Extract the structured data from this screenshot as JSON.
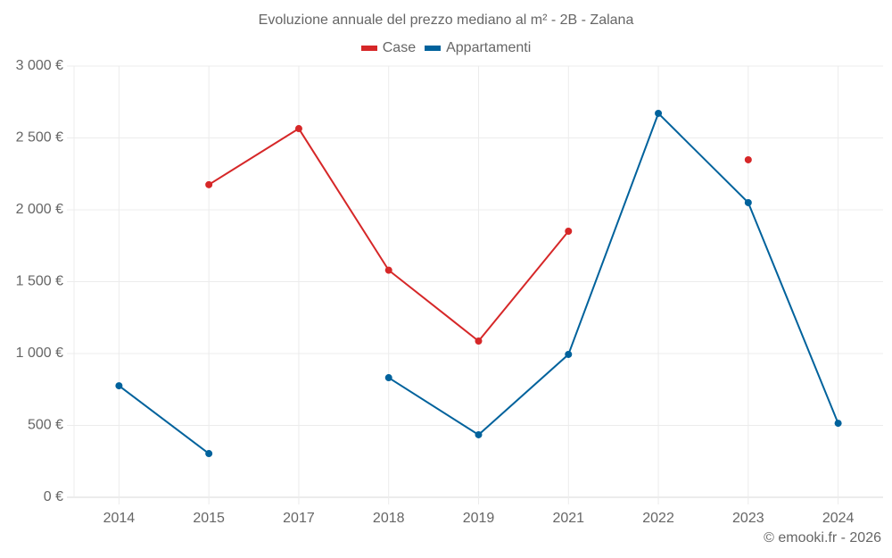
{
  "title": "Evoluzione annuale del prezzo mediano al m² - 2B - Zalana",
  "legend": [
    {
      "label": "Case",
      "color": "#d62728"
    },
    {
      "label": "Appartamenti",
      "color": "#00629c"
    }
  ],
  "credit": "© emooki.fr - 2026",
  "colors": {
    "case": "#d62728",
    "appartamenti": "#00629c",
    "grid": "#ececec",
    "axis": "#d9d9d9",
    "text": "#666666"
  },
  "chart_data": {
    "type": "line",
    "title": "Evoluzione annuale del prezzo mediano al m² - 2B - Zalana",
    "xlabel": "",
    "ylabel": "",
    "categories": [
      "2014",
      "2015",
      "2017",
      "2018",
      "2019",
      "2021",
      "2022",
      "2023",
      "2024"
    ],
    "series": [
      {
        "name": "Case",
        "color": "#d62728",
        "values": [
          null,
          2175,
          2565,
          1580,
          1087,
          1851,
          null,
          2348,
          null
        ]
      },
      {
        "name": "Appartamenti",
        "color": "#00629c",
        "values": [
          776,
          304,
          null,
          832,
          435,
          994,
          2671,
          2050,
          515
        ]
      }
    ],
    "ylim": [
      0,
      3000
    ],
    "yticks": [
      0,
      500,
      1000,
      1500,
      2000,
      2500,
      3000
    ],
    "ytick_labels": [
      "0 €",
      "500 €",
      "1 000 €",
      "1 500 €",
      "2 000 €",
      "2 500 €",
      "3 000 €"
    ],
    "grid": true,
    "legend_position": "top"
  }
}
